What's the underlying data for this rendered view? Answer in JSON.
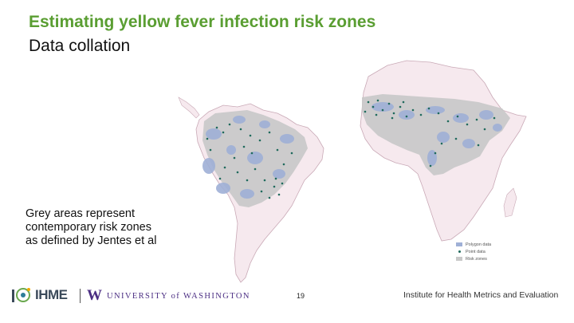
{
  "slide": {
    "title": "Estimating yellow fever infection risk zones",
    "subtitle": "Data collation",
    "caption": "Grey areas represent contemporary risk zones as defined by Jentes et al",
    "page_number": "19"
  },
  "map": {
    "legend": [
      {
        "label": "Polygon data",
        "color": "#9fb0d6"
      },
      {
        "label": "Point data",
        "color": "#1f6a5c"
      },
      {
        "label": "Risk zones",
        "color": "#c8c8c8"
      }
    ]
  },
  "footer": {
    "ihme_logo_text": "IHME",
    "uw_logo_text": "UNIVERSITY of WASHINGTON",
    "institute_text": "Institute for Health Metrics and Evaluation"
  },
  "colors": {
    "title_green": "#5a9e32",
    "land_pink": "#f6e9ee",
    "border": "#c9a9b6",
    "risk_grey": "#c8c8c8",
    "polygon_blue": "#9fb0d6",
    "point_green": "#1f6a5c",
    "uw_purple": "#4b2e83"
  }
}
